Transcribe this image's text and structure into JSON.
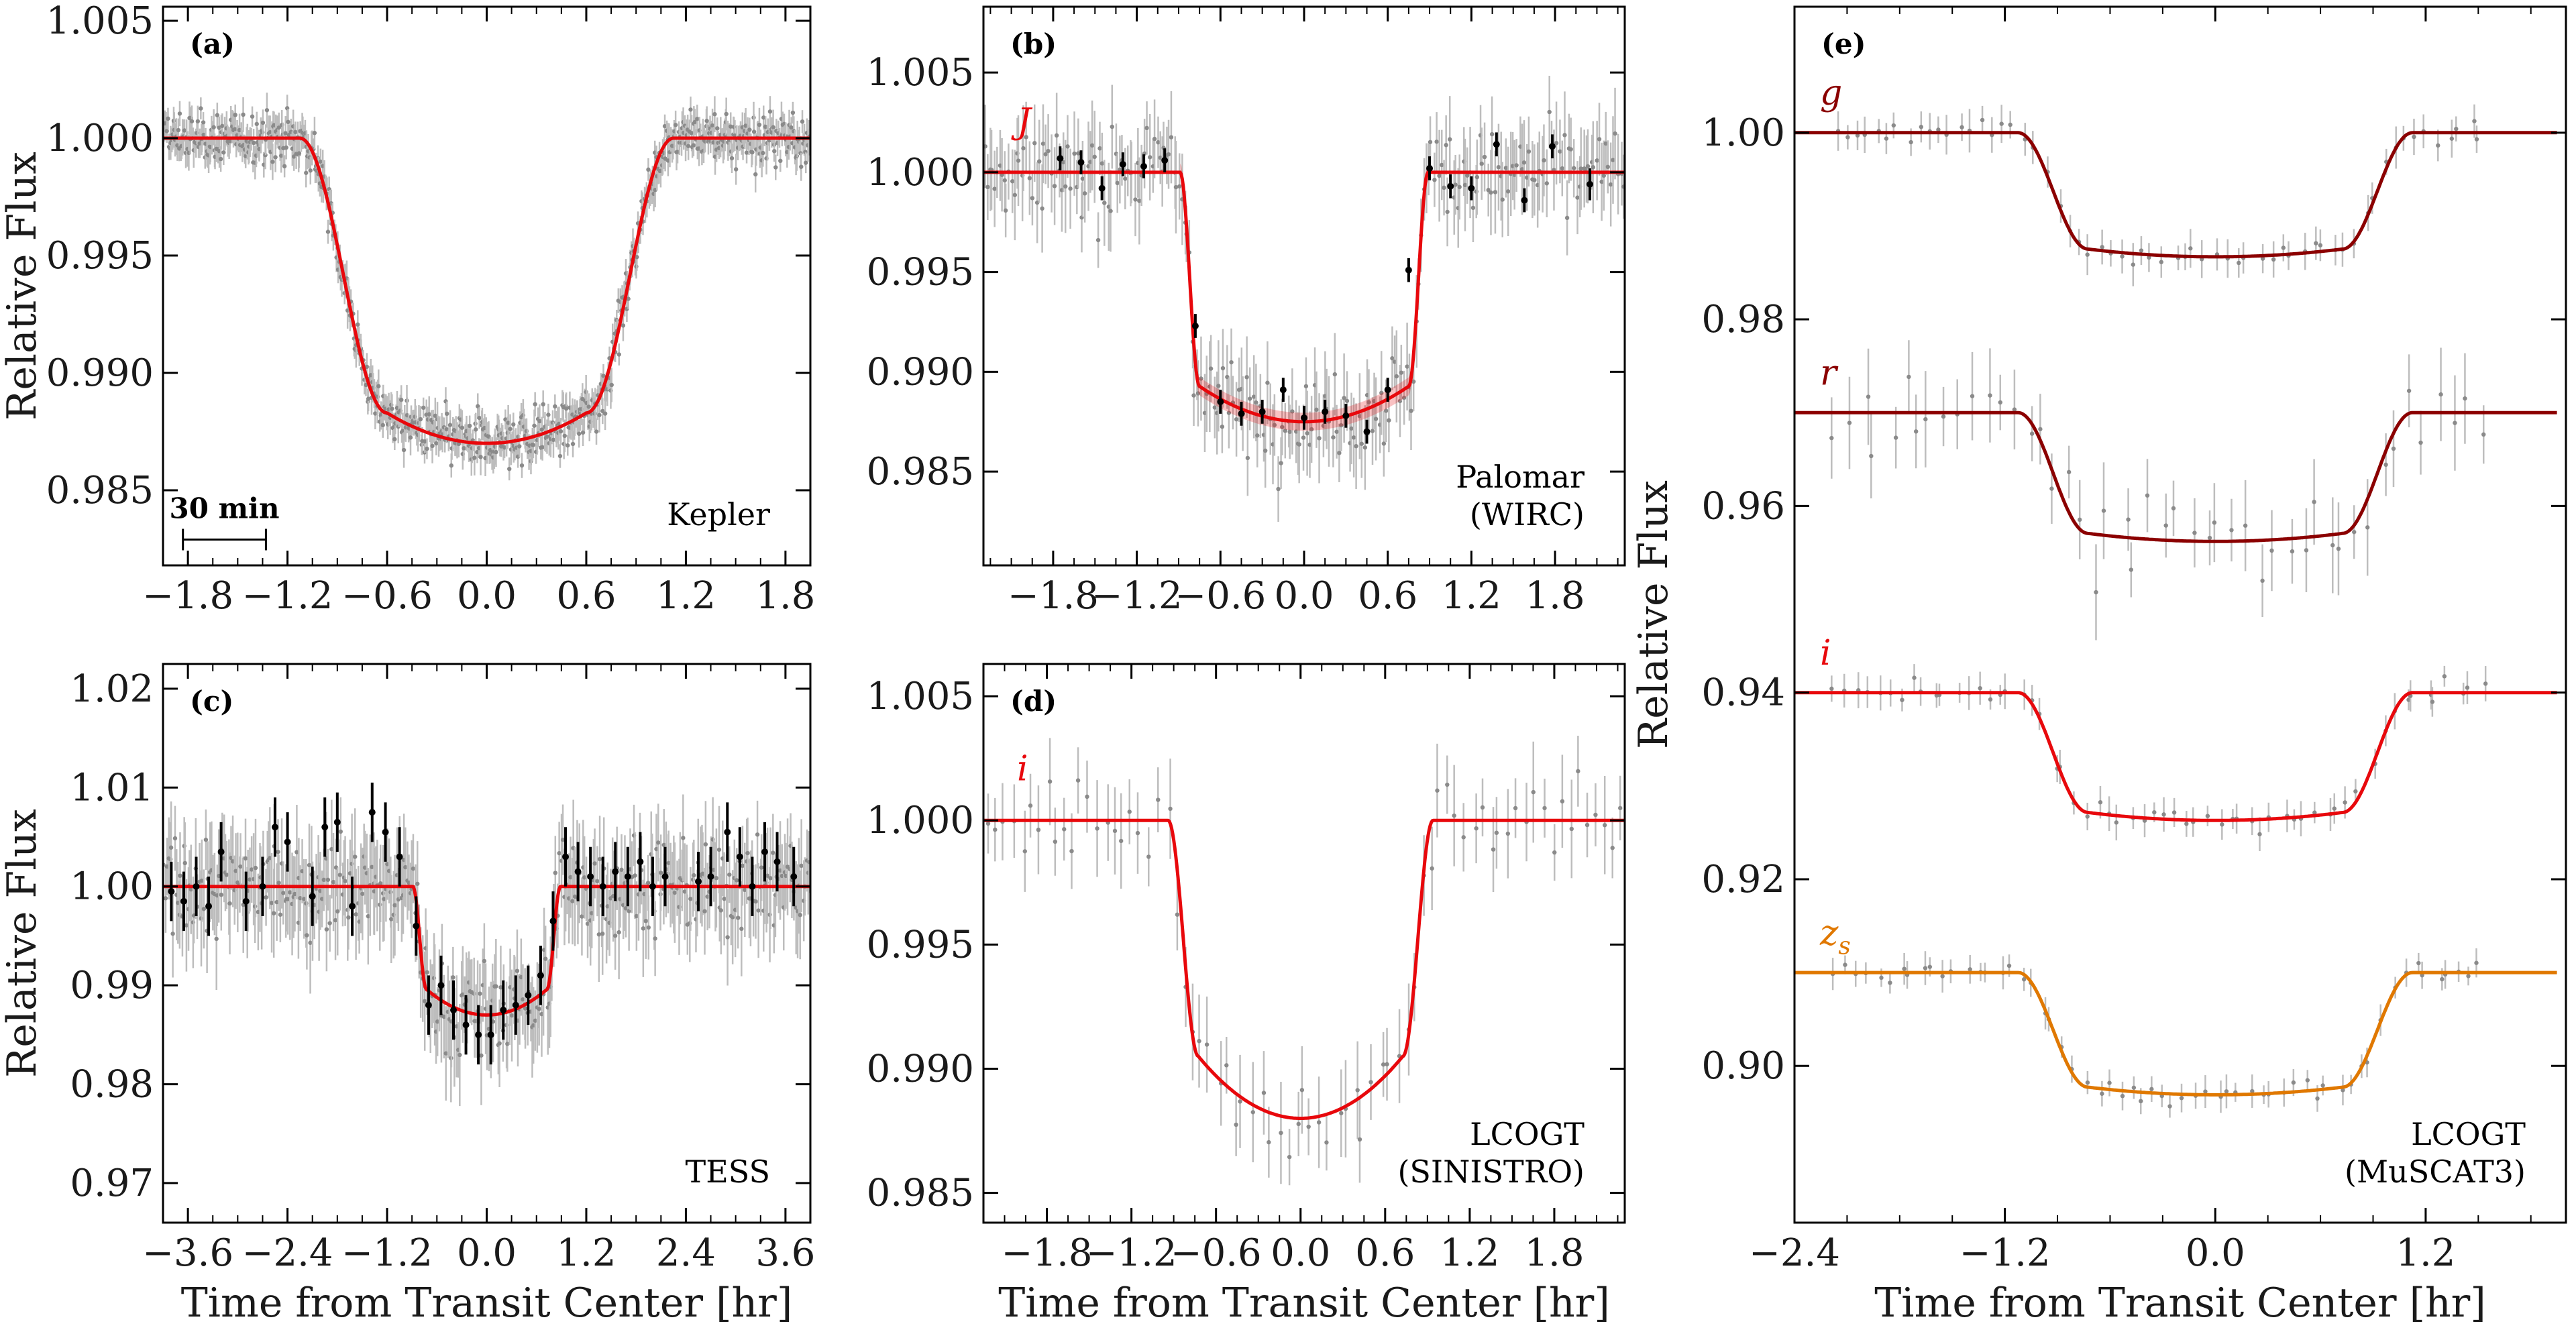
{
  "figure": {
    "colors": {
      "model": "#e8080c",
      "binned": "#000000",
      "raw": "#bdbdbd",
      "g": "#8b0000",
      "r": "#8b0000",
      "i": "#e8080c",
      "zs": "#e07800"
    }
  },
  "chart_data": [
    {
      "id": "a",
      "type": "line",
      "panel_label": "(a)",
      "instrument": [
        "Kepler"
      ],
      "xlabel": "",
      "ylabel": "Relative Flux",
      "xlim": [
        -1.95,
        1.95
      ],
      "ylim": [
        0.9818,
        1.0056
      ],
      "xticks": [
        -1.8,
        -1.2,
        -0.6,
        0.0,
        0.6,
        1.2,
        1.8
      ],
      "xtick_labels": [
        "−1.8",
        "−1.2",
        "−0.6",
        "0.0",
        "0.6",
        "1.2",
        "1.8"
      ],
      "yticks": [
        0.985,
        0.99,
        0.995,
        1.0,
        1.005
      ],
      "ytick_labels": [
        "0.985",
        "0.990",
        "0.995",
        "1.000",
        "1.005"
      ],
      "scale_bar": {
        "label": "30 min",
        "duration_hr": 0.5,
        "x_start_hr": -1.83,
        "y_level": 0.9829
      },
      "model": {
        "baseline": 1.0,
        "depth": 0.013,
        "t14_hr": 2.25,
        "t23_hr": 1.2,
        "limb": 0.35,
        "color": "#e8080c"
      },
      "raw_points": {
        "count": 700,
        "scatter": 0.0014,
        "err": 0.0006
      },
      "binned_points": []
    },
    {
      "id": "b",
      "type": "line",
      "panel_label": "(b)",
      "instrument": [
        "Palomar",
        "(WIRC)"
      ],
      "band": {
        "label": "J",
        "color": "#e8080c",
        "y": 1.0017
      },
      "xlabel": "",
      "ylabel": "",
      "xlim": [
        -2.3,
        2.3
      ],
      "ylim": [
        0.9803,
        1.0083
      ],
      "xticks": [
        -1.8,
        -1.2,
        -0.6,
        0.0,
        0.6,
        1.2,
        1.8
      ],
      "xtick_labels": [
        "−1.8",
        "−1.2",
        "−0.6",
        "0.0",
        "0.6",
        "1.2",
        "1.8"
      ],
      "yticks": [
        0.985,
        0.99,
        0.995,
        1.0,
        1.005
      ],
      "ytick_labels": [
        "0.985",
        "0.990",
        "0.995",
        "1.000",
        "1.005"
      ],
      "model": {
        "baseline": 1.0,
        "depth": 0.0125,
        "t14_hr": 1.78,
        "t23_hr": 1.5,
        "limb": 0.2,
        "color": "#e8080c",
        "uncertainty_band": true
      },
      "raw_points": {
        "count": 260,
        "scatter": 0.0028,
        "err": 0.0018
      },
      "binned_points": [
        {
          "x": -1.75,
          "y": 1.0007,
          "err": 0.0006
        },
        {
          "x": -1.6,
          "y": 1.0005,
          "err": 0.0006
        },
        {
          "x": -1.45,
          "y": 0.9992,
          "err": 0.0006
        },
        {
          "x": -1.3,
          "y": 1.0004,
          "err": 0.0006
        },
        {
          "x": -1.15,
          "y": 1.0003,
          "err": 0.0006
        },
        {
          "x": -1.0,
          "y": 1.0006,
          "err": 0.0006
        },
        {
          "x": -0.78,
          "y": 0.9923,
          "err": 0.0006
        },
        {
          "x": -0.6,
          "y": 0.9885,
          "err": 0.0006
        },
        {
          "x": -0.45,
          "y": 0.9879,
          "err": 0.0006
        },
        {
          "x": -0.3,
          "y": 0.988,
          "err": 0.0006
        },
        {
          "x": -0.15,
          "y": 0.9891,
          "err": 0.0006
        },
        {
          "x": 0.0,
          "y": 0.9877,
          "err": 0.0006
        },
        {
          "x": 0.15,
          "y": 0.988,
          "err": 0.0006
        },
        {
          "x": 0.3,
          "y": 0.9878,
          "err": 0.0006
        },
        {
          "x": 0.45,
          "y": 0.987,
          "err": 0.0006
        },
        {
          "x": 0.6,
          "y": 0.9891,
          "err": 0.0006
        },
        {
          "x": 0.75,
          "y": 0.9951,
          "err": 0.0006
        },
        {
          "x": 0.9,
          "y": 1.0002,
          "err": 0.0006
        },
        {
          "x": 1.05,
          "y": 0.9993,
          "err": 0.0006
        },
        {
          "x": 1.2,
          "y": 0.9992,
          "err": 0.0006
        },
        {
          "x": 1.38,
          "y": 1.0014,
          "err": 0.0006
        },
        {
          "x": 1.58,
          "y": 0.9986,
          "err": 0.0006
        },
        {
          "x": 1.78,
          "y": 1.0013,
          "err": 0.0006
        },
        {
          "x": 2.05,
          "y": 0.9994,
          "err": 0.0008
        }
      ]
    },
    {
      "id": "c",
      "type": "line",
      "panel_label": "(c)",
      "instrument": [
        "TESS"
      ],
      "xlabel": "Time from Transit Center [hr]",
      "ylabel": "Relative Flux",
      "xlim": [
        -3.9,
        3.9
      ],
      "ylim": [
        0.966,
        1.0225
      ],
      "xticks": [
        -3.6,
        -2.4,
        -1.2,
        0.0,
        1.2,
        2.4,
        3.6
      ],
      "xtick_labels": [
        "−3.6",
        "−2.4",
        "−1.2",
        "0.0",
        "1.2",
        "2.4",
        "3.6"
      ],
      "yticks": [
        0.97,
        0.98,
        0.99,
        1.0,
        1.01,
        1.02
      ],
      "ytick_labels": [
        "0.97",
        "0.98",
        "0.99",
        "1.00",
        "1.01",
        "1.02"
      ],
      "model": {
        "baseline": 1.0,
        "depth": 0.013,
        "t14_hr": 1.78,
        "t23_hr": 1.45,
        "limb": 0.3,
        "color": "#e8080c"
      },
      "raw_points": {
        "count": 420,
        "scatter": 0.006,
        "err": 0.004
      },
      "binned_points": [
        {
          "x": -3.8,
          "y": 0.9995,
          "err": 0.003
        },
        {
          "x": -3.65,
          "y": 0.9985,
          "err": 0.003
        },
        {
          "x": -3.5,
          "y": 1.0,
          "err": 0.003
        },
        {
          "x": -3.35,
          "y": 0.998,
          "err": 0.003
        },
        {
          "x": -3.2,
          "y": 1.0035,
          "err": 0.003
        },
        {
          "x": -2.9,
          "y": 0.9985,
          "err": 0.003
        },
        {
          "x": -2.7,
          "y": 1.0,
          "err": 0.003
        },
        {
          "x": -2.55,
          "y": 1.006,
          "err": 0.003
        },
        {
          "x": -2.4,
          "y": 1.0045,
          "err": 0.003
        },
        {
          "x": -2.1,
          "y": 0.999,
          "err": 0.003
        },
        {
          "x": -1.95,
          "y": 1.006,
          "err": 0.003
        },
        {
          "x": -1.8,
          "y": 1.0065,
          "err": 0.003
        },
        {
          "x": -1.62,
          "y": 0.998,
          "err": 0.003
        },
        {
          "x": -1.38,
          "y": 1.0075,
          "err": 0.003
        },
        {
          "x": -1.22,
          "y": 1.0055,
          "err": 0.003
        },
        {
          "x": -1.05,
          "y": 1.003,
          "err": 0.003
        },
        {
          "x": -0.85,
          "y": 0.996,
          "err": 0.003
        },
        {
          "x": -0.7,
          "y": 0.988,
          "err": 0.003
        },
        {
          "x": -0.55,
          "y": 0.99,
          "err": 0.003
        },
        {
          "x": -0.4,
          "y": 0.9875,
          "err": 0.003
        },
        {
          "x": -0.25,
          "y": 0.986,
          "err": 0.003
        },
        {
          "x": -0.1,
          "y": 0.985,
          "err": 0.003
        },
        {
          "x": 0.05,
          "y": 0.985,
          "err": 0.003
        },
        {
          "x": 0.2,
          "y": 0.9875,
          "err": 0.003
        },
        {
          "x": 0.35,
          "y": 0.988,
          "err": 0.003
        },
        {
          "x": 0.5,
          "y": 0.989,
          "err": 0.003
        },
        {
          "x": 0.65,
          "y": 0.991,
          "err": 0.003
        },
        {
          "x": 0.8,
          "y": 0.9965,
          "err": 0.003
        },
        {
          "x": 0.95,
          "y": 1.003,
          "err": 0.003
        },
        {
          "x": 1.1,
          "y": 1.0015,
          "err": 0.003
        },
        {
          "x": 1.25,
          "y": 1.001,
          "err": 0.003
        },
        {
          "x": 1.4,
          "y": 1.0,
          "err": 0.003
        },
        {
          "x": 1.55,
          "y": 1.0015,
          "err": 0.003
        },
        {
          "x": 1.7,
          "y": 1.001,
          "err": 0.003
        },
        {
          "x": 1.85,
          "y": 1.0025,
          "err": 0.003
        },
        {
          "x": 2.0,
          "y": 1.0,
          "err": 0.003
        },
        {
          "x": 2.15,
          "y": 1.001,
          "err": 0.003
        },
        {
          "x": 2.55,
          "y": 1.0005,
          "err": 0.003
        },
        {
          "x": 2.7,
          "y": 1.001,
          "err": 0.003
        },
        {
          "x": 2.9,
          "y": 1.0055,
          "err": 0.003
        },
        {
          "x": 3.05,
          "y": 1.003,
          "err": 0.003
        },
        {
          "x": 3.2,
          "y": 1.0,
          "err": 0.003
        },
        {
          "x": 3.35,
          "y": 1.0035,
          "err": 0.003
        },
        {
          "x": 3.5,
          "y": 1.0025,
          "err": 0.003
        },
        {
          "x": 3.7,
          "y": 1.001,
          "err": 0.003
        }
      ]
    },
    {
      "id": "d",
      "type": "line",
      "panel_label": "(d)",
      "instrument": [
        "LCOGT",
        "(SINISTRO)"
      ],
      "band": {
        "label": "i",
        "color": "#e8080c",
        "y": 1.0014
      },
      "xlabel": "Time from Transit Center [hr]",
      "ylabel": "",
      "xlim": [
        -2.25,
        2.3
      ],
      "ylim": [
        0.9838,
        1.0063
      ],
      "xticks": [
        -1.8,
        -1.2,
        -0.6,
        0.0,
        0.6,
        1.2,
        1.8
      ],
      "xtick_labels": [
        "−1.8",
        "−1.2",
        "−0.6",
        "0.0",
        "0.6",
        "1.2",
        "1.8"
      ],
      "yticks": [
        0.985,
        0.99,
        0.995,
        1.0,
        1.005
      ],
      "ytick_labels": [
        "0.985",
        "0.990",
        "0.995",
        "1.000",
        "1.005"
      ],
      "model": {
        "baseline": 1.0,
        "depth": 0.012,
        "t14_hr": 1.88,
        "t23_hr": 1.45,
        "limb": 0.35,
        "color": "#e8080c"
      },
      "raw_points": {
        "count": 75,
        "scatter": 0.0022,
        "err": 0.0016
      },
      "binned_points": []
    },
    {
      "id": "e",
      "type": "line",
      "panel_label": "(e)",
      "instrument": [
        "LCOGT",
        "(MuSCAT3)"
      ],
      "xlabel": "Time from Transit Center [hr]",
      "ylabel": "Relative Flux",
      "xlim": [
        -2.4,
        2.0
      ],
      "ylim": [
        0.8832,
        1.0135
      ],
      "xticks": [
        -2.4,
        -1.2,
        0.0,
        1.2
      ],
      "xtick_labels": [
        "−2.4",
        "−1.2",
        "0.0",
        "1.2"
      ],
      "yticks": [
        0.9,
        0.92,
        0.94,
        0.96,
        0.98,
        1.0
      ],
      "ytick_labels": [
        "0.90",
        "0.92",
        "0.94",
        "0.96",
        "0.98",
        "1.00"
      ],
      "series": [
        {
          "name": "g",
          "label_y": 1.003,
          "baseline": 1.0,
          "depth": 0.0133,
          "t14_hr": 2.25,
          "t23_hr": 1.45,
          "limb": 0.15,
          "color": "#8b0000",
          "raw": {
            "count": 62,
            "scatter": 0.0016,
            "err": 0.0018
          }
        },
        {
          "name": "r",
          "label_y": 0.973,
          "baseline": 0.97,
          "depth": 0.0138,
          "t14_hr": 2.25,
          "t23_hr": 1.45,
          "limb": 0.15,
          "color": "#8b0000",
          "raw": {
            "count": 48,
            "scatter": 0.0055,
            "err": 0.004
          }
        },
        {
          "name": "i",
          "label_y": 0.943,
          "baseline": 0.94,
          "depth": 0.0137,
          "t14_hr": 2.25,
          "t23_hr": 1.45,
          "limb": 0.15,
          "color": "#e8080c",
          "raw": {
            "count": 60,
            "scatter": 0.0016,
            "err": 0.0015
          }
        },
        {
          "name": "z_s",
          "label_y": 0.913,
          "baseline": 0.91,
          "depth": 0.0131,
          "t14_hr": 2.25,
          "t23_hr": 1.45,
          "limb": 0.15,
          "color": "#e07800",
          "raw": {
            "count": 60,
            "scatter": 0.0014,
            "err": 0.0014
          }
        }
      ]
    }
  ]
}
